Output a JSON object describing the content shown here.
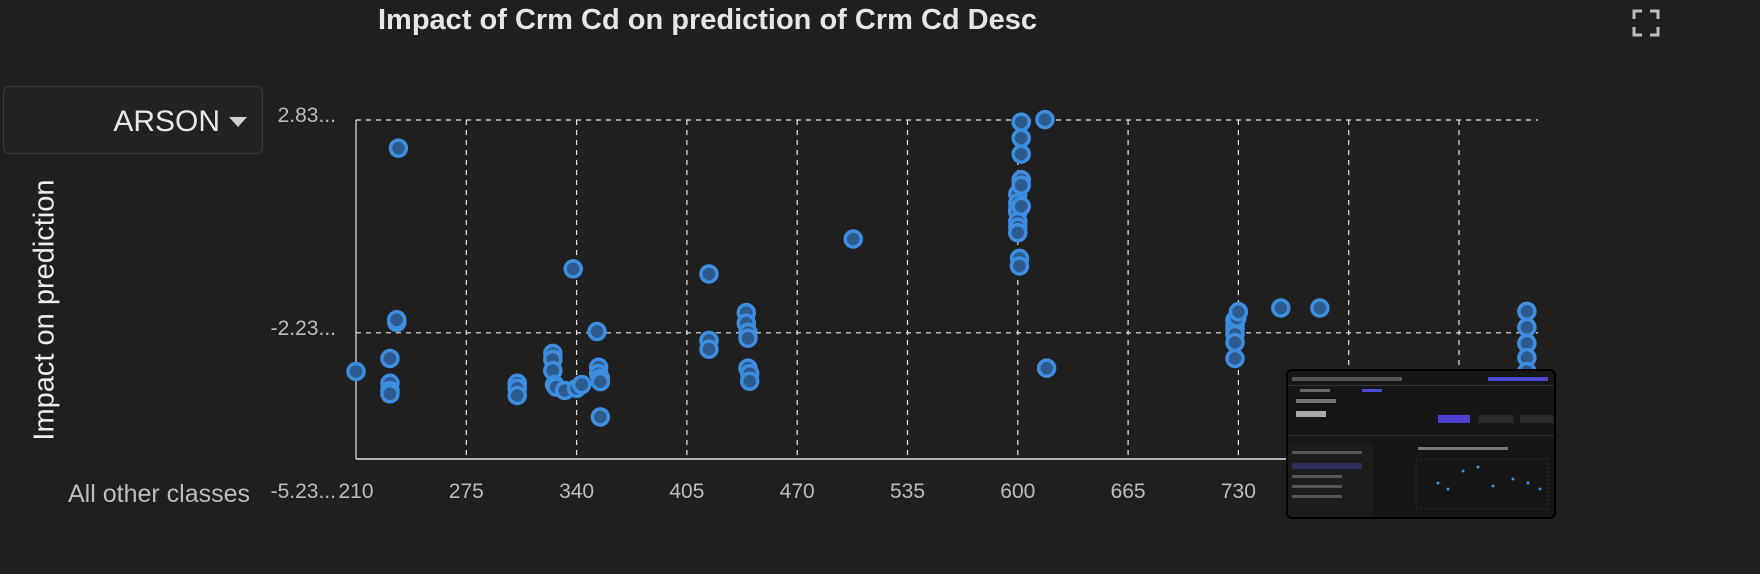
{
  "title": "Impact of Crm Cd on prediction of Crm Cd Desc",
  "class_select": {
    "value": "ARSON"
  },
  "other_classes_label": "All other classes",
  "ylabel": "Impact on prediction",
  "icons": {
    "expand": "expand-icon",
    "dropdown": "chevron-down-icon"
  },
  "colors": {
    "point": "#3d8ee0",
    "grid": "#ffffff",
    "background": "#1f1f1f"
  },
  "chart_data": {
    "type": "scatter",
    "title": "Impact of Crm Cd on prediction of Crm Cd Desc",
    "xlabel": "",
    "ylabel": "Impact on prediction",
    "x_ticks": [
      "210",
      "275",
      "340",
      "405",
      "470",
      "535",
      "600",
      "665",
      "730"
    ],
    "y_ticks": [
      "2.83...",
      "-2.23...",
      "-5.23..."
    ],
    "xlim": [
      210,
      990
    ],
    "ylim": [
      -5.23,
      2.83
    ],
    "grid": true,
    "series": [
      {
        "x": [
          235,
          234,
          234,
          230,
          230,
          230,
          230,
          210,
          305,
          305,
          305,
          326,
          326,
          326,
          327,
          328,
          333,
          338,
          340,
          343,
          352,
          353,
          353,
          354,
          354,
          354,
          418,
          418,
          418,
          440,
          440,
          441,
          441,
          441,
          442,
          442,
          503,
          600,
          600,
          600,
          600,
          600,
          600,
          600,
          601,
          601,
          602,
          602,
          602,
          602,
          602,
          602,
          616,
          617,
          728,
          728,
          728,
          728,
          728,
          728,
          729,
          730,
          755,
          778,
          900,
          900,
          900,
          900,
          900,
          900
        ],
        "y": [
          2.16,
          -1.98,
          -1.92,
          -2.84,
          -3.43,
          -3.6,
          -3.68,
          -3.15,
          -3.43,
          -3.55,
          -3.72,
          -2.72,
          -2.86,
          -3.13,
          -3.46,
          -3.52,
          -3.6,
          -0.71,
          -3.55,
          -3.46,
          -2.2,
          -3.05,
          -3.2,
          -3.31,
          -4.23,
          -3.39,
          -2.41,
          -2.62,
          -0.83,
          -1.75,
          -2.0,
          -2.22,
          -2.36,
          -3.07,
          -3.2,
          -3.38,
          0.0,
          1.07,
          0.86,
          0.71,
          0.64,
          0.42,
          0.28,
          0.15,
          -0.46,
          -0.64,
          2.78,
          2.4,
          2.02,
          1.41,
          1.28,
          0.78,
          2.84,
          -3.07,
          -1.93,
          -2.05,
          -2.14,
          -2.27,
          -2.46,
          -2.84,
          -1.88,
          -1.73,
          -1.64,
          -1.64,
          -1.72,
          -2.1,
          -2.48,
          -2.82,
          -3.15,
          -4.2
        ]
      }
    ]
  }
}
